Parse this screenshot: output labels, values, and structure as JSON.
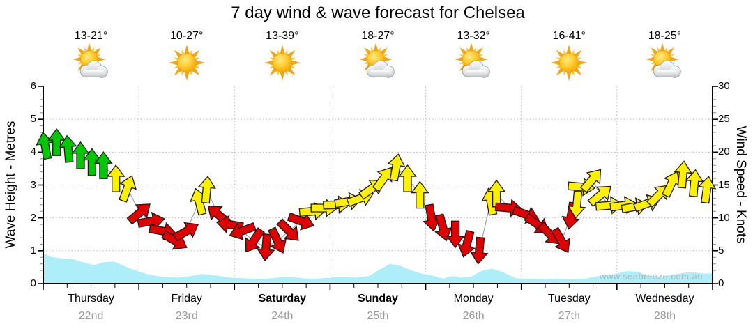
{
  "title": "7 day wind & wave forecast for Chelsea",
  "watermark": "www.seabreeze.com.au",
  "days": [
    {
      "name": "Thursday",
      "date": "22nd",
      "temp": "13-21°",
      "icon": "sun-cloud",
      "bold": false
    },
    {
      "name": "Friday",
      "date": "23rd",
      "temp": "10-27°",
      "icon": "sun",
      "bold": false
    },
    {
      "name": "Saturday",
      "date": "24th",
      "temp": "13-39°",
      "icon": "sun",
      "bold": true
    },
    {
      "name": "Sunday",
      "date": "25th",
      "temp": "18-27°",
      "icon": "sun-cloud",
      "bold": true
    },
    {
      "name": "Monday",
      "date": "26th",
      "temp": "13-32°",
      "icon": "sun-cloud",
      "bold": false
    },
    {
      "name": "Tuesday",
      "date": "27th",
      "temp": "16-41°",
      "icon": "sun",
      "bold": false
    },
    {
      "name": "Wednesday",
      "date": "28th",
      "temp": "18-25°",
      "icon": "sun-cloud",
      "bold": false
    }
  ],
  "chart_data": {
    "type": "combo",
    "subtype": "wind-arrow vectors (right axis) + wave-height area (left axis)",
    "left_axis": {
      "label": "Wave Height - Metres",
      "min": 0,
      "max": 6,
      "major_ticks": [
        0,
        1,
        2,
        3,
        4,
        5,
        6
      ],
      "minor_step": 0.2,
      "unit": "m"
    },
    "right_axis": {
      "label": "Wind Speed - Knots",
      "min": 0,
      "max": 30,
      "major_ticks": [
        0,
        5,
        10,
        15,
        20,
        25,
        30
      ],
      "minor_step": 1,
      "unit": "kn"
    },
    "x_axis": {
      "range_days": [
        0,
        7
      ],
      "major_tick": "day boundary",
      "minor_tick": "6 hours"
    },
    "grid": {
      "h_lines_knots": [
        5,
        10,
        15,
        20,
        25
      ],
      "v_lines_day": [
        1,
        2,
        3,
        4,
        5,
        6
      ],
      "style": "dotted"
    },
    "legend": "arrow colour = wind strength band (green / yellow / red); arrow points downwind; 0°=up(N), 90°=right(E)",
    "wind_series": {
      "name": "Wind speed & direction (3-hourly)",
      "point_format": [
        "t_days",
        "speed_knots",
        "dir_deg",
        "colour"
      ],
      "points": [
        [
          0.02,
          21.0,
          -10,
          "g"
        ],
        [
          0.14,
          21.5,
          0,
          "g"
        ],
        [
          0.26,
          20.5,
          -5,
          "g"
        ],
        [
          0.39,
          19.5,
          0,
          "g"
        ],
        [
          0.51,
          18.5,
          0,
          "g"
        ],
        [
          0.63,
          18.0,
          0,
          "g"
        ],
        [
          0.76,
          16.0,
          0,
          "y"
        ],
        [
          0.88,
          14.5,
          20,
          "y"
        ],
        [
          1.01,
          10.8,
          50,
          "r"
        ],
        [
          1.13,
          9.5,
          80,
          "r"
        ],
        [
          1.25,
          8.0,
          100,
          "r"
        ],
        [
          1.38,
          6.5,
          120,
          "r"
        ],
        [
          1.5,
          8.0,
          60,
          "r"
        ],
        [
          1.63,
          12.5,
          -15,
          "y"
        ],
        [
          1.71,
          14.3,
          5,
          "y"
        ],
        [
          1.83,
          10.5,
          310,
          "r"
        ],
        [
          1.95,
          9.0,
          280,
          "r"
        ],
        [
          2.08,
          8.0,
          250,
          "r"
        ],
        [
          2.2,
          6.5,
          215,
          "r"
        ],
        [
          2.33,
          5.5,
          185,
          "r"
        ],
        [
          2.45,
          6.5,
          155,
          "r"
        ],
        [
          2.57,
          8.0,
          135,
          "r"
        ],
        [
          2.7,
          9.5,
          110,
          "r"
        ],
        [
          2.82,
          11.0,
          85,
          "y"
        ],
        [
          2.94,
          11.5,
          90,
          "y"
        ],
        [
          3.07,
          12.0,
          88,
          "y"
        ],
        [
          3.19,
          12.5,
          80,
          "y"
        ],
        [
          3.32,
          13.0,
          70,
          "y"
        ],
        [
          3.44,
          14.5,
          55,
          "y"
        ],
        [
          3.56,
          16.0,
          35,
          "y"
        ],
        [
          3.69,
          17.7,
          10,
          "y"
        ],
        [
          3.81,
          16.0,
          0,
          "y"
        ],
        [
          3.94,
          13.5,
          0,
          "y"
        ],
        [
          4.06,
          10.0,
          170,
          "r"
        ],
        [
          4.18,
          8.5,
          165,
          "r"
        ],
        [
          4.31,
          7.5,
          180,
          "r"
        ],
        [
          4.43,
          6.0,
          195,
          "r"
        ],
        [
          4.56,
          5.0,
          185,
          "r"
        ],
        [
          4.68,
          12.5,
          -10,
          "y"
        ],
        [
          4.74,
          13.7,
          0,
          "y"
        ],
        [
          4.87,
          11.5,
          95,
          "r"
        ],
        [
          5.05,
          10.5,
          110,
          "r"
        ],
        [
          5.17,
          9.0,
          125,
          "r"
        ],
        [
          5.3,
          7.5,
          135,
          "r"
        ],
        [
          5.42,
          6.5,
          150,
          "r"
        ],
        [
          5.52,
          10.3,
          190,
          "r"
        ],
        [
          5.58,
          12.0,
          185,
          "y"
        ],
        [
          5.63,
          14.7,
          95,
          "y"
        ],
        [
          5.74,
          15.8,
          40,
          "y"
        ],
        [
          5.83,
          13.5,
          50,
          "y"
        ],
        [
          5.92,
          11.9,
          85,
          "y"
        ],
        [
          6.07,
          11.9,
          82,
          "y"
        ],
        [
          6.19,
          11.7,
          80,
          "y"
        ],
        [
          6.32,
          12.2,
          70,
          "y"
        ],
        [
          6.44,
          13.5,
          45,
          "y"
        ],
        [
          6.57,
          15.2,
          25,
          "y"
        ],
        [
          6.69,
          16.6,
          5,
          "y"
        ],
        [
          6.81,
          15.3,
          5,
          "y"
        ],
        [
          6.94,
          14.3,
          8,
          "y"
        ]
      ]
    },
    "wave_series": {
      "name": "Wave height",
      "point_format": [
        "t_days",
        "height_m"
      ],
      "points": [
        [
          0.0,
          0.95
        ],
        [
          0.09,
          0.82
        ],
        [
          0.2,
          0.78
        ],
        [
          0.31,
          0.76
        ],
        [
          0.42,
          0.66
        ],
        [
          0.53,
          0.58
        ],
        [
          0.64,
          0.67
        ],
        [
          0.74,
          0.69
        ],
        [
          0.85,
          0.55
        ],
        [
          1.0,
          0.38
        ],
        [
          1.12,
          0.28
        ],
        [
          1.26,
          0.22
        ],
        [
          1.41,
          0.2
        ],
        [
          1.55,
          0.25
        ],
        [
          1.66,
          0.31
        ],
        [
          1.81,
          0.26
        ],
        [
          1.95,
          0.2
        ],
        [
          2.1,
          0.18
        ],
        [
          2.24,
          0.16
        ],
        [
          2.39,
          0.18
        ],
        [
          2.54,
          0.22
        ],
        [
          2.65,
          0.2
        ],
        [
          2.76,
          0.17
        ],
        [
          2.86,
          0.17
        ],
        [
          2.97,
          0.19
        ],
        [
          3.12,
          0.22
        ],
        [
          3.27,
          0.2
        ],
        [
          3.41,
          0.25
        ],
        [
          3.52,
          0.45
        ],
        [
          3.63,
          0.62
        ],
        [
          3.74,
          0.55
        ],
        [
          3.85,
          0.42
        ],
        [
          3.96,
          0.32
        ],
        [
          4.07,
          0.26
        ],
        [
          4.18,
          0.17
        ],
        [
          4.29,
          0.25
        ],
        [
          4.36,
          0.2
        ],
        [
          4.47,
          0.22
        ],
        [
          4.58,
          0.4
        ],
        [
          4.69,
          0.47
        ],
        [
          4.8,
          0.38
        ],
        [
          4.94,
          0.18
        ],
        [
          5.09,
          0.16
        ],
        [
          5.23,
          0.15
        ],
        [
          5.38,
          0.17
        ],
        [
          5.52,
          0.14
        ],
        [
          5.67,
          0.17
        ],
        [
          5.82,
          0.25
        ],
        [
          5.96,
          0.3
        ],
        [
          6.11,
          0.4
        ],
        [
          6.22,
          0.37
        ],
        [
          6.33,
          0.26
        ],
        [
          6.47,
          0.23
        ],
        [
          6.62,
          0.3
        ],
        [
          6.73,
          0.36
        ],
        [
          6.84,
          0.35
        ],
        [
          6.91,
          0.32
        ],
        [
          7.0,
          0.33
        ]
      ]
    },
    "colors": {
      "green": "#00c800",
      "yellow": "#ffef00",
      "red": "#e00000",
      "wave_fill": "#aeeef8",
      "wave_edge": "#ffffff",
      "grid": "#b4b4b4",
      "axis": "#000000",
      "wind_line": "#a0a0a0",
      "minor_tick": "#888888",
      "date_text": "#9a9a9a",
      "watermark_text": "#a9b5bb"
    }
  }
}
